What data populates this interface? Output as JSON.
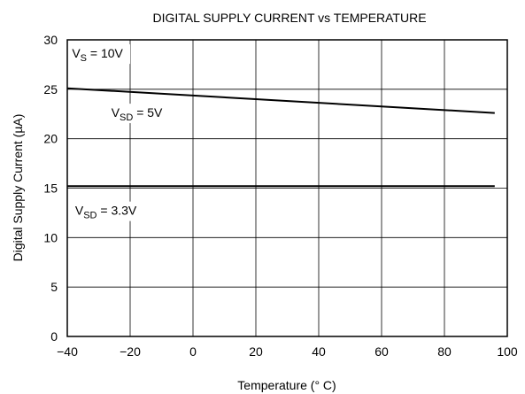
{
  "chart_data": {
    "type": "line",
    "title": "DIGITAL SUPPLY CURRENT vs TEMPERATURE",
    "xlabel": "Temperature (° C)",
    "ylabel": "Digital Supply Current (µA)",
    "xlim": [
      -40,
      100
    ],
    "ylim": [
      0,
      30
    ],
    "x_ticks": [
      -40,
      -20,
      0,
      20,
      40,
      60,
      80,
      100
    ],
    "x_tick_labels": [
      "−40",
      "−20",
      "0",
      "20",
      "40",
      "60",
      "80",
      "100"
    ],
    "y_ticks": [
      0,
      5,
      10,
      15,
      20,
      25,
      30
    ],
    "y_tick_labels": [
      "0",
      "5",
      "10",
      "15",
      "20",
      "25",
      "30"
    ],
    "grid": true,
    "series": [
      {
        "name": "",
        "x": [
          -40,
          96
        ],
        "y": [
          25.1,
          22.6
        ],
        "color": "#000000"
      },
      {
        "name": "",
        "x": [
          -40,
          96
        ],
        "y": [
          15.2,
          15.2
        ],
        "color": "#000000"
      }
    ],
    "annotations": [
      {
        "main": "V",
        "sub": "S",
        "rest": " = 10V",
        "x": -38.5,
        "y": 28.2
      },
      {
        "main": "V",
        "sub": "SD",
        "rest": " = 5V",
        "x": -26,
        "y": 22.2
      },
      {
        "main": "V",
        "sub": "SD",
        "rest": " = 3.3V",
        "x": -37.5,
        "y": 12.3
      }
    ]
  }
}
